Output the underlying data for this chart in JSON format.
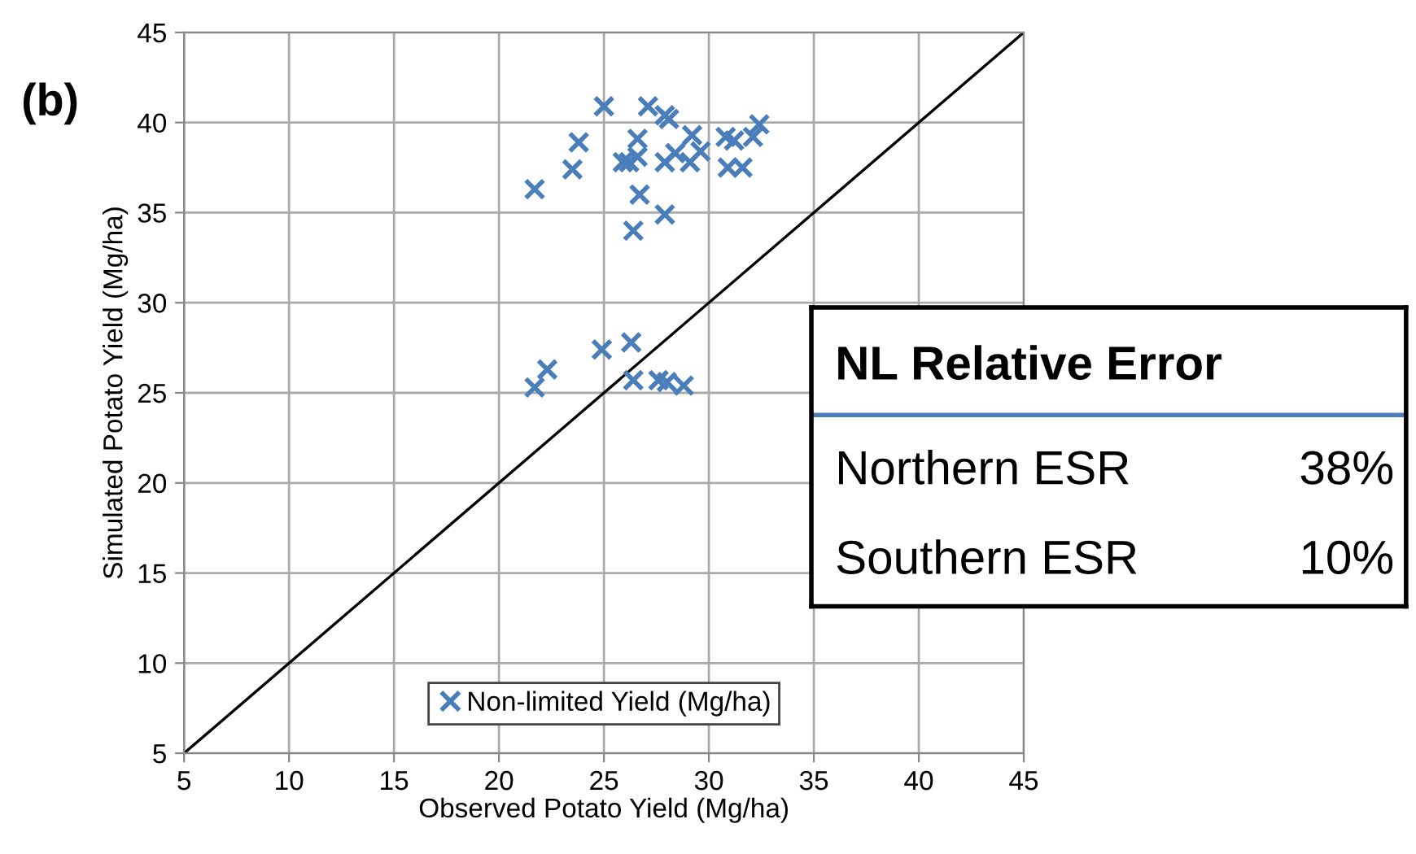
{
  "chart_data": {
    "type": "scatter",
    "xlabel": "Observed Potato Yield (Mg/ha)",
    "ylabel": "Simulated Potato Yield (Mg/ha)",
    "xlim": [
      5,
      45
    ],
    "ylim": [
      5,
      45
    ],
    "xticks": [
      5,
      10,
      15,
      20,
      25,
      30,
      35,
      40,
      45
    ],
    "yticks": [
      5,
      10,
      15,
      20,
      25,
      30,
      35,
      40,
      45
    ],
    "grid": true,
    "legend": "bottom",
    "marker": "cross",
    "series": [
      {
        "name": "Non-limited Yield (Mg/ha)",
        "color": "#4a7ebb",
        "x": [
          21.7,
          23.8,
          23.5,
          25.0,
          27.1,
          27.9,
          28.1,
          26.6,
          25.9,
          26.2,
          26.6,
          27.9,
          28.4,
          29.2,
          29.1,
          29.6,
          30.8,
          31.2,
          30.9,
          31.6,
          32.1,
          32.4,
          26.7,
          27.9,
          26.4,
          21.7,
          22.3,
          24.9,
          26.3,
          26.4,
          27.6,
          28.0,
          28.8
        ],
        "values": [
          36.3,
          38.9,
          37.4,
          40.9,
          40.9,
          40.4,
          40.2,
          39.1,
          37.8,
          37.8,
          38.1,
          37.8,
          38.3,
          39.3,
          37.8,
          38.4,
          39.2,
          39.0,
          37.5,
          37.5,
          39.2,
          39.9,
          36.0,
          34.9,
          34.0,
          25.3,
          26.3,
          27.4,
          27.8,
          25.7,
          25.7,
          25.6,
          25.4
        ]
      },
      {
        "type": "line",
        "color": "#000000",
        "x": [
          5,
          45
        ],
        "values": [
          5,
          45
        ],
        "marker": "none"
      }
    ],
    "annotations": [
      "(b)",
      "NL Relative Error",
      "Northern ESR",
      "38%",
      "Southern ESR",
      "10%"
    ]
  }
}
